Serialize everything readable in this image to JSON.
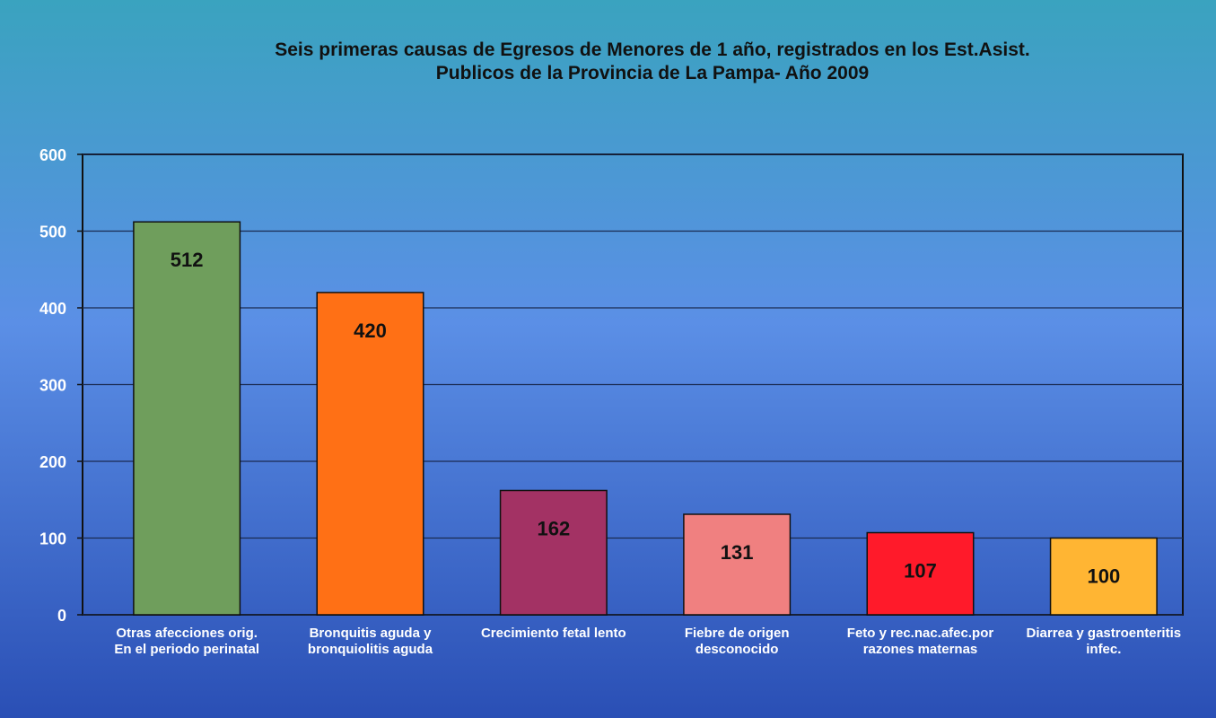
{
  "chart_data": {
    "type": "bar",
    "title": "Seis primeras causas de Egresos de Menores de 1 año, registrados en los Est.Asist.\nPublicos de la Provincia de La Pampa- Año 2009",
    "categories": [
      "Otras afecciones orig.\nEn el periodo perinatal",
      "Bronquitis aguda y\nbronquiolitis aguda",
      "Crecimiento fetal lento",
      "Fiebre de origen\ndesconocido",
      "Feto y rec.nac.afec.por\nrazones maternas",
      "Diarrea y gastroenteritis\ninfec."
    ],
    "values": [
      512,
      420,
      162,
      131,
      107,
      100
    ],
    "colors": [
      "#6f9e5c",
      "#ff7015",
      "#a33264",
      "#f08080",
      "#ff1a2a",
      "#ffb533"
    ],
    "ylim": [
      0,
      600
    ],
    "yticks": [
      0,
      100,
      200,
      300,
      400,
      500,
      600
    ],
    "grid": true
  }
}
